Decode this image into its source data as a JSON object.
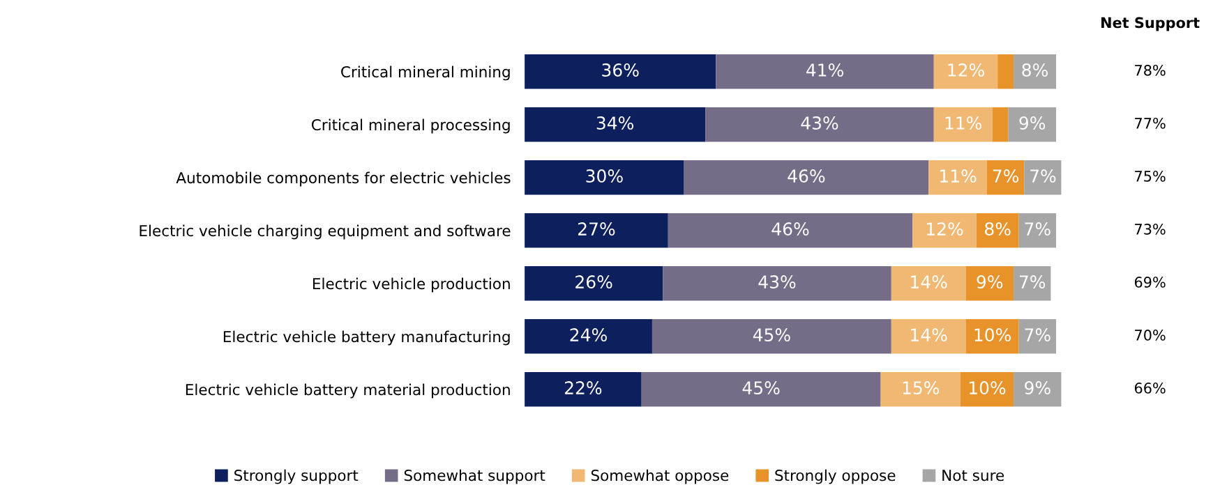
{
  "chart_data": {
    "type": "bar",
    "orientation": "horizontal",
    "stacked": true,
    "legend": "bottom",
    "grid": false,
    "categories": [
      "Critical mineral mining",
      "Critical mineral processing",
      "Automobile components for electric vehicles",
      "Electric vehicle charging equipment and software",
      "Electric vehicle production",
      "Electric vehicle battery manufacturing",
      "Electric vehicle battery material production"
    ],
    "series": [
      {
        "name": "Strongly support",
        "color": "#0d1f5c",
        "values": [
          36,
          34,
          30,
          27,
          26,
          24,
          22
        ],
        "value_labels": [
          "36%",
          "34%",
          "30%",
          "27%",
          "26%",
          "24%",
          "22%"
        ]
      },
      {
        "name": "Somewhat support",
        "color": "#756c87",
        "values": [
          41,
          43,
          46,
          46,
          43,
          45,
          45
        ],
        "value_labels": [
          "41%",
          "43%",
          "46%",
          "46%",
          "43%",
          "45%",
          "45%"
        ]
      },
      {
        "name": "Somewhat oppose",
        "color": "#f0b872",
        "values": [
          12,
          11,
          11,
          12,
          14,
          14,
          15
        ],
        "value_labels": [
          "12%",
          "11%",
          "11%",
          "12%",
          "14%",
          "14%",
          "15%"
        ]
      },
      {
        "name": "Strongly oppose",
        "color": "#e8922a",
        "values": [
          3,
          3,
          7,
          8,
          9,
          10,
          10
        ],
        "value_labels": [
          null,
          null,
          "7%",
          "8%",
          "9%",
          "10%",
          "10%"
        ]
      },
      {
        "name": "Not sure",
        "color": "#a6a6a6",
        "values": [
          8,
          9,
          7,
          7,
          7,
          7,
          9
        ],
        "value_labels": [
          "8%",
          "9%",
          "7%",
          "7%",
          "7%",
          "7%",
          "9%"
        ]
      }
    ],
    "annotations": [
      "Net Support",
      "78%",
      "77%",
      "75%",
      "73%",
      "69%",
      "70%",
      "66%"
    ]
  }
}
